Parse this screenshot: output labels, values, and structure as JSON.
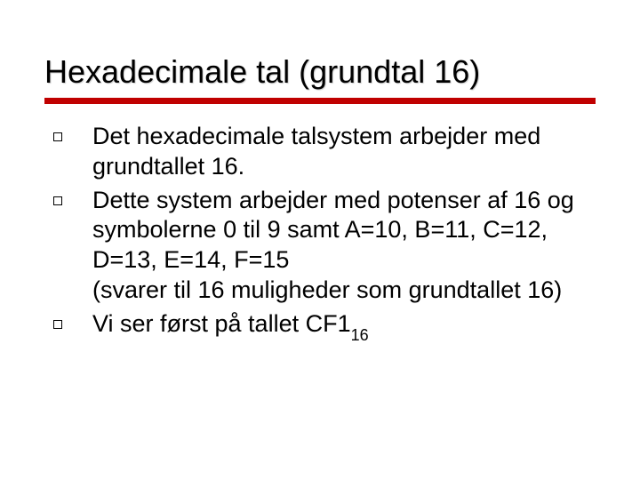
{
  "title": "Hexadecimale tal (grundtal 16)",
  "colors": {
    "underline": "#c00000",
    "text": "#000000",
    "background": "#ffffff"
  },
  "typography": {
    "title_fontsize": 36,
    "body_fontsize": 27,
    "subscript_fontsize": 18,
    "font_family": "Verdana"
  },
  "bullets": [
    {
      "text": "Det hexadecimale talsystem arbejder med grundtallet 16."
    },
    {
      "text": "Dette system arbejder med potenser af 16 og symbolerne 0 til 9  samt A=10, B=11, C=12, D=13, E=14, F=15",
      "continuation": "(svarer til 16 muligheder som grundtallet 16)"
    },
    {
      "text_prefix": "Vi ser først på tallet CF1",
      "subscript": "16"
    }
  ]
}
